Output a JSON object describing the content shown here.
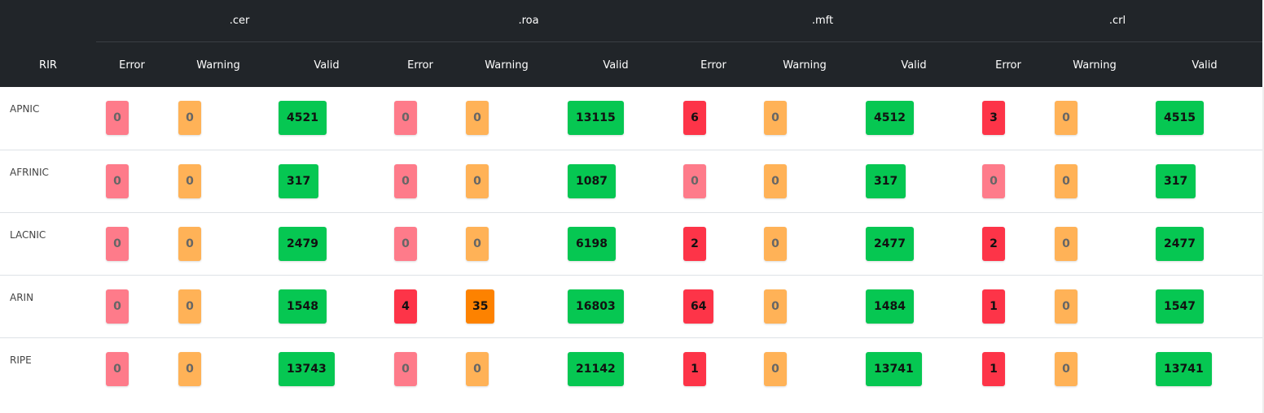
{
  "header": {
    "rir_label": "RIR",
    "groups": [
      ".cer",
      ".roa",
      ".mft",
      ".crl"
    ],
    "subcolumns": [
      "Error",
      "Warning",
      "Valid"
    ]
  },
  "rows": [
    {
      "rir": "APNIC",
      "values": [
        [
          "0",
          "0",
          "4521"
        ],
        [
          "0",
          "0",
          "13115"
        ],
        [
          "6",
          "0",
          "4512"
        ],
        [
          "3",
          "0",
          "4515"
        ]
      ]
    },
    {
      "rir": "AFRINIC",
      "values": [
        [
          "0",
          "0",
          "317"
        ],
        [
          "0",
          "0",
          "1087"
        ],
        [
          "0",
          "0",
          "317"
        ],
        [
          "0",
          "0",
          "317"
        ]
      ]
    },
    {
      "rir": "LACNIC",
      "values": [
        [
          "0",
          "0",
          "2479"
        ],
        [
          "0",
          "0",
          "6198"
        ],
        [
          "2",
          "0",
          "2477"
        ],
        [
          "2",
          "0",
          "2477"
        ]
      ]
    },
    {
      "rir": "ARIN",
      "values": [
        [
          "0",
          "0",
          "1548"
        ],
        [
          "4",
          "35",
          "16803"
        ],
        [
          "64",
          "0",
          "1484"
        ],
        [
          "1",
          "0",
          "1547"
        ]
      ]
    },
    {
      "rir": "RIPE",
      "values": [
        [
          "0",
          "0",
          "13743"
        ],
        [
          "0",
          "0",
          "21142"
        ],
        [
          "1",
          "0",
          "13741"
        ],
        [
          "1",
          "0",
          "13741"
        ]
      ]
    }
  ],
  "colors": {
    "header_bg": "#212529",
    "error_zero": "#fe7b8a",
    "error_nonzero": "#fd3448",
    "warning_zero": "#ffb257",
    "warning_nonzero": "#fd8200",
    "valid": "#06c752"
  }
}
